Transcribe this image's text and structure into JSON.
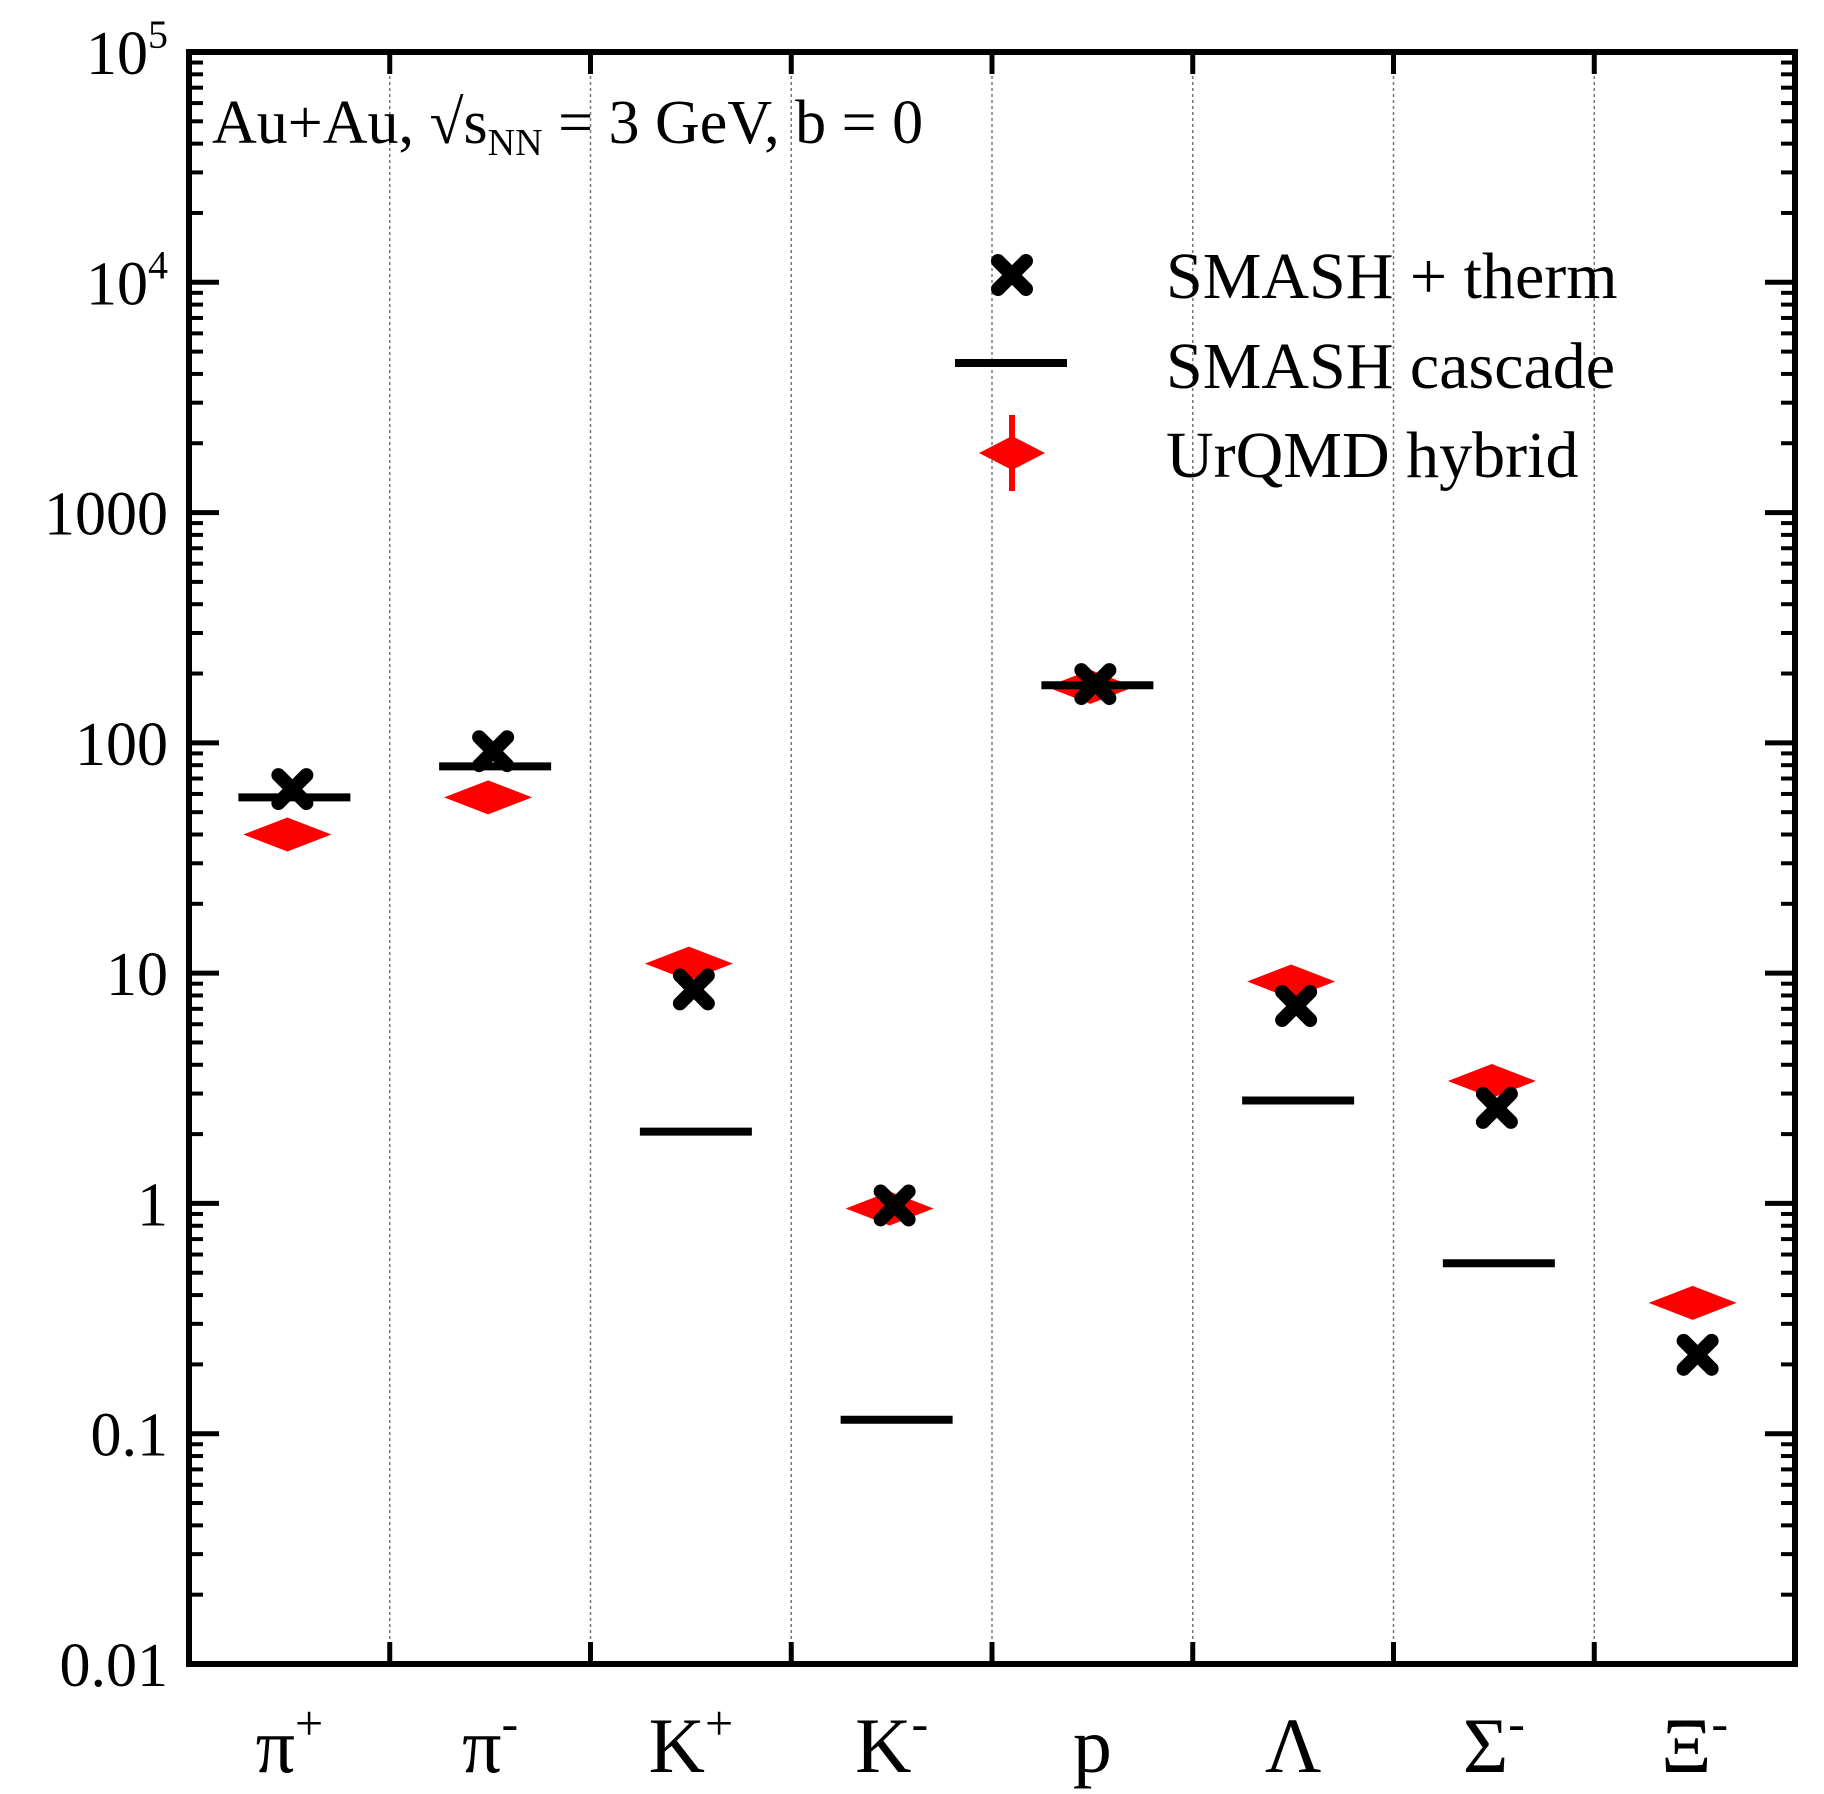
{
  "chart_data": {
    "type": "scatter",
    "title": "",
    "annotation": {
      "prefix": "Au+Au, √s",
      "subscript": "NN",
      "suffix": " = 3 GeV, b = 0"
    },
    "xlabel": "",
    "ylabel": "",
    "yscale": "log",
    "ylim": [
      0.01,
      100000
    ],
    "grid": {
      "x": true,
      "y": false,
      "style": "dotted"
    },
    "categories": [
      {
        "base": "π",
        "sup": "+"
      },
      {
        "base": "π",
        "sup": "-"
      },
      {
        "base": "K",
        "sup": "+"
      },
      {
        "base": "K",
        "sup": "-"
      },
      {
        "base": "p",
        "sup": ""
      },
      {
        "base": "Λ",
        "sup": ""
      },
      {
        "base": "Σ",
        "sup": "-"
      },
      {
        "base": "Ξ",
        "sup": "-"
      }
    ],
    "y_ticks": [
      {
        "value": 0.01,
        "label": "0.01"
      },
      {
        "value": 0.1,
        "label": "0.1"
      },
      {
        "value": 1,
        "label": "1"
      },
      {
        "value": 10,
        "label": "10"
      },
      {
        "value": 100,
        "label": "100"
      },
      {
        "value": 1000,
        "label": "1000"
      },
      {
        "value": 10000,
        "base": "10",
        "exp": "4"
      },
      {
        "value": 100000,
        "base": "10",
        "exp": "5"
      }
    ],
    "series": [
      {
        "name": "UrQMD hybrid",
        "marker": "diamond-errorbar",
        "color": "#ff0000",
        "values": [
          40,
          58,
          11,
          0.95,
          175,
          9.2,
          3.4,
          0.37
        ]
      },
      {
        "name": "SMASH + therm",
        "marker": "x",
        "color": "#000000",
        "values": [
          63,
          92,
          8.5,
          0.98,
          180,
          7.2,
          2.6,
          0.22
        ]
      },
      {
        "name": "SMASH cascade",
        "marker": "hline",
        "color": "#000000",
        "values": [
          58,
          79,
          2.05,
          0.115,
          178,
          2.8,
          0.55,
          null
        ]
      }
    ],
    "legend": {
      "position": "top-right",
      "entries": [
        "SMASH + therm",
        "SMASH cascade",
        "UrQMD hybrid"
      ]
    }
  }
}
